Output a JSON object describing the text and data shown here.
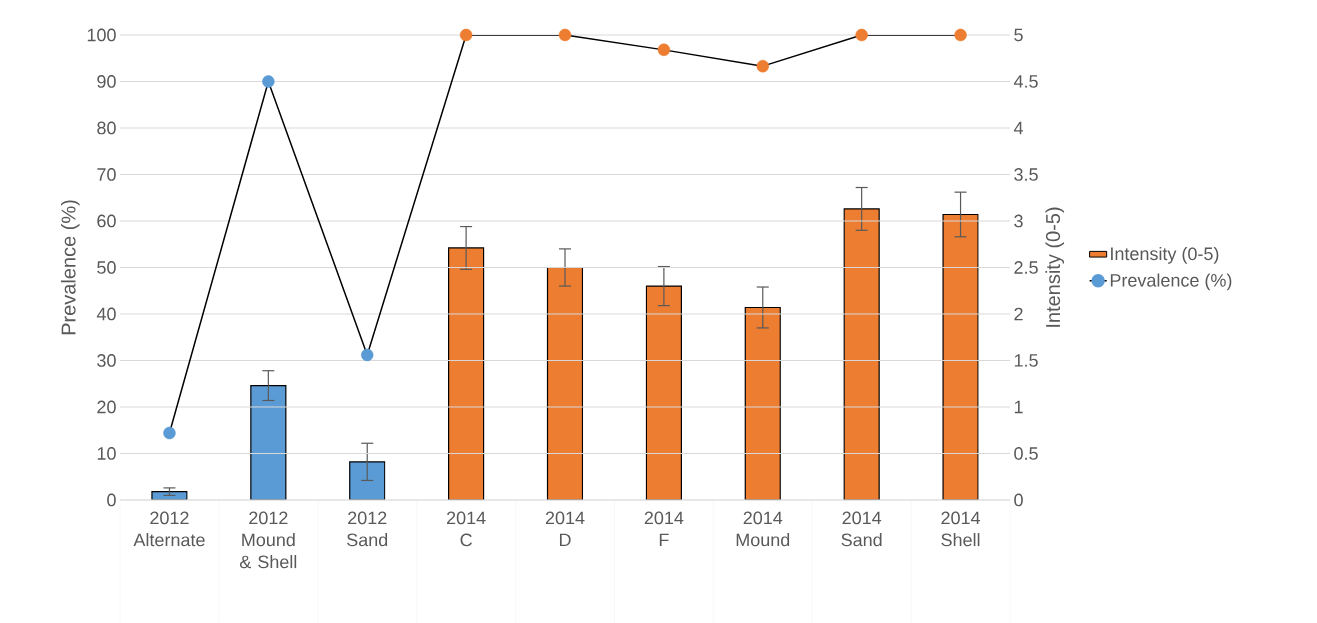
{
  "chart_data": {
    "type": "bar",
    "categories": [
      "2012 Alternate",
      "2012 Mound & Shell",
      "2012 Sand",
      "2014 C",
      "2014 D",
      "2014 F",
      "2014 Mound",
      "2014 Sand",
      "2014 Shell"
    ],
    "ylabel": "Prevalence (%)",
    "y2label": "Intensity (0-5)",
    "ylim": [
      0,
      100
    ],
    "yticks": [
      0,
      10,
      20,
      30,
      40,
      50,
      60,
      70,
      80,
      90,
      100
    ],
    "y2lim": [
      0,
      5
    ],
    "y2ticks": [
      0,
      0.5,
      1,
      1.5,
      2,
      2.5,
      3,
      3.5,
      4,
      4.5,
      5
    ],
    "grid": "y",
    "legend": "right",
    "series": [
      {
        "name": "Intensity (0-5)",
        "axis": "y2",
        "colors": [
          "#5b9bd5",
          "#5b9bd5",
          "#5b9bd5",
          "#ed7d31",
          "#ed7d31",
          "#ed7d31",
          "#ed7d31",
          "#ed7d31",
          "#ed7d31"
        ],
        "values": [
          0.09,
          1.23,
          0.41,
          2.71,
          2.5,
          2.3,
          2.07,
          3.13,
          3.07
        ],
        "errors": [
          0.04,
          0.16,
          0.2,
          0.23,
          0.2,
          0.21,
          0.22,
          0.23,
          0.24
        ]
      },
      {
        "name": "Prevalence (%)",
        "type": "line",
        "color": "#000000",
        "colors": [
          "#5b9bd5",
          "#5b9bd5",
          "#5b9bd5",
          "#ed7d31",
          "#ed7d31",
          "#ed7d31",
          "#ed7d31",
          "#ed7d31",
          "#ed7d31"
        ],
        "marker": "circle",
        "values": [
          14.4,
          90,
          31.2,
          100,
          100,
          96.8,
          93.3,
          100,
          100
        ]
      }
    ]
  }
}
